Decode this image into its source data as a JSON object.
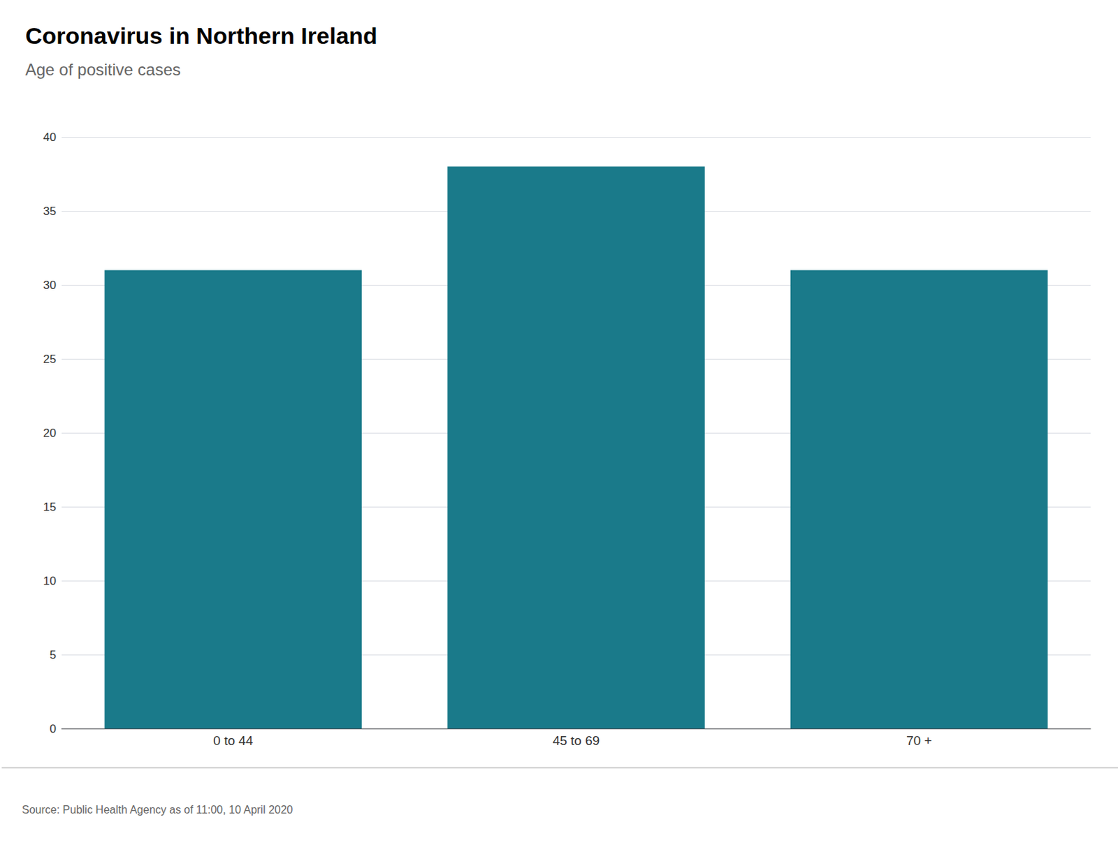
{
  "chart_data": {
    "type": "bar",
    "title": "Coronavirus in Northern Ireland",
    "subtitle": "Age of positive cases",
    "categories": [
      "0 to 44",
      "45 to 69",
      "70 +"
    ],
    "values": [
      31,
      38,
      31
    ],
    "color": "#1a7a8a",
    "ylim": [
      0,
      40
    ],
    "yticks": [
      0,
      5,
      10,
      15,
      20,
      25,
      30,
      35,
      40
    ],
    "grid": true,
    "annotations": [
      "Source: Public Health Agency as of 11:00, 10 April 2020"
    ]
  }
}
